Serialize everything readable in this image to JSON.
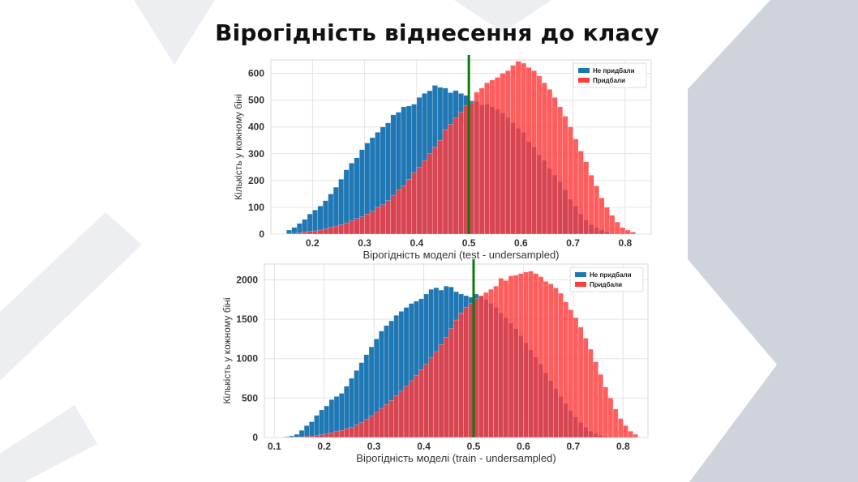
{
  "slide": {
    "title": "Вірогідність віднесення до класу",
    "colors": {
      "background": "#ffffff",
      "decor": "#cfd4dc",
      "decor_light": "#eceef1"
    }
  },
  "chart_data": [
    {
      "type": "bar",
      "subtype": "overlapping-histogram",
      "xlabel": "Вірогідність моделі (test - undersampled)",
      "ylabel": "Кількість у кожному біні",
      "xlim": [
        0.12,
        0.85
      ],
      "ylim": [
        0,
        650
      ],
      "xticks": [
        0.2,
        0.3,
        0.4,
        0.5,
        0.6,
        0.7,
        0.8
      ],
      "yticks": [
        0,
        100,
        200,
        300,
        400,
        500,
        600
      ],
      "grid": true,
      "legend_position": "top-right",
      "threshold_line": {
        "x": 0.5,
        "color": "#0a7a0a"
      },
      "bin_width": 0.01,
      "series": [
        {
          "name": "Не придбали",
          "color": "#1f77b4",
          "x": [
            0.15,
            0.16,
            0.17,
            0.18,
            0.19,
            0.2,
            0.21,
            0.22,
            0.23,
            0.24,
            0.25,
            0.26,
            0.27,
            0.28,
            0.29,
            0.3,
            0.31,
            0.32,
            0.33,
            0.34,
            0.35,
            0.36,
            0.37,
            0.38,
            0.39,
            0.4,
            0.41,
            0.42,
            0.43,
            0.44,
            0.45,
            0.46,
            0.47,
            0.48,
            0.49,
            0.5,
            0.51,
            0.52,
            0.53,
            0.54,
            0.55,
            0.56,
            0.57,
            0.58,
            0.59,
            0.6,
            0.61,
            0.62,
            0.63,
            0.64,
            0.65,
            0.66,
            0.67,
            0.68,
            0.69,
            0.7,
            0.71,
            0.72,
            0.73,
            0.74,
            0.75,
            0.76
          ],
          "values": [
            15,
            25,
            40,
            55,
            75,
            90,
            105,
            125,
            150,
            175,
            205,
            240,
            265,
            285,
            315,
            340,
            360,
            380,
            400,
            415,
            445,
            455,
            475,
            478,
            485,
            510,
            525,
            535,
            555,
            548,
            545,
            528,
            536,
            525,
            518,
            497,
            495,
            482,
            485,
            475,
            465,
            452,
            435,
            415,
            395,
            380,
            345,
            325,
            295,
            275,
            245,
            220,
            195,
            165,
            130,
            105,
            75,
            52,
            35,
            25,
            15,
            8
          ]
        },
        {
          "name": "Придбали",
          "color": "#ff3b3b",
          "x": [
            0.15,
            0.16,
            0.17,
            0.18,
            0.19,
            0.2,
            0.21,
            0.22,
            0.23,
            0.24,
            0.25,
            0.26,
            0.27,
            0.28,
            0.29,
            0.3,
            0.31,
            0.32,
            0.33,
            0.34,
            0.35,
            0.36,
            0.37,
            0.38,
            0.39,
            0.4,
            0.41,
            0.42,
            0.43,
            0.44,
            0.45,
            0.46,
            0.47,
            0.48,
            0.49,
            0.5,
            0.51,
            0.52,
            0.53,
            0.54,
            0.55,
            0.56,
            0.57,
            0.58,
            0.59,
            0.6,
            0.61,
            0.62,
            0.63,
            0.64,
            0.65,
            0.66,
            0.67,
            0.68,
            0.69,
            0.7,
            0.71,
            0.72,
            0.73,
            0.74,
            0.75,
            0.76,
            0.77,
            0.78,
            0.79,
            0.8,
            0.81
          ],
          "values": [
            2,
            3,
            5,
            8,
            10,
            12,
            15,
            20,
            25,
            30,
            35,
            42,
            50,
            58,
            65,
            75,
            85,
            100,
            110,
            125,
            145,
            165,
            180,
            205,
            230,
            250,
            275,
            300,
            325,
            350,
            390,
            410,
            435,
            455,
            480,
            490,
            530,
            545,
            565,
            575,
            585,
            600,
            610,
            630,
            645,
            638,
            622,
            610,
            590,
            565,
            540,
            510,
            475,
            440,
            400,
            355,
            310,
            270,
            220,
            180,
            135,
            100,
            70,
            45,
            25,
            15,
            8
          ]
        }
      ]
    },
    {
      "type": "bar",
      "subtype": "overlapping-histogram",
      "xlabel": "Вірогідність моделі (train - undersampled)",
      "ylabel": "Кількість у кожному біні",
      "xlim": [
        0.08,
        0.85
      ],
      "ylim": [
        0,
        2200
      ],
      "xticks": [
        0.1,
        0.2,
        0.3,
        0.4,
        0.5,
        0.6,
        0.7,
        0.8
      ],
      "yticks": [
        0,
        500,
        1000,
        1500,
        2000
      ],
      "grid": true,
      "legend_position": "top-right",
      "threshold_line": {
        "x": 0.5,
        "color": "#0a7a0a"
      },
      "bin_width": 0.01,
      "series": [
        {
          "name": "Не придбали",
          "color": "#1f77b4",
          "x": [
            0.12,
            0.13,
            0.14,
            0.15,
            0.16,
            0.17,
            0.18,
            0.19,
            0.2,
            0.21,
            0.22,
            0.23,
            0.24,
            0.25,
            0.26,
            0.27,
            0.28,
            0.29,
            0.3,
            0.31,
            0.32,
            0.33,
            0.34,
            0.35,
            0.36,
            0.37,
            0.38,
            0.39,
            0.4,
            0.41,
            0.42,
            0.43,
            0.44,
            0.45,
            0.46,
            0.47,
            0.48,
            0.49,
            0.5,
            0.51,
            0.52,
            0.53,
            0.54,
            0.55,
            0.56,
            0.57,
            0.58,
            0.59,
            0.6,
            0.61,
            0.62,
            0.63,
            0.64,
            0.65,
            0.66,
            0.67,
            0.68,
            0.69,
            0.7,
            0.71,
            0.72,
            0.73,
            0.74,
            0.75,
            0.76
          ],
          "values": [
            10,
            20,
            40,
            90,
            150,
            200,
            280,
            350,
            400,
            480,
            520,
            560,
            650,
            750,
            850,
            950,
            1050,
            1150,
            1250,
            1350,
            1420,
            1480,
            1550,
            1600,
            1650,
            1700,
            1730,
            1760,
            1820,
            1880,
            1900,
            1870,
            1920,
            1910,
            1850,
            1820,
            1800,
            1780,
            1820,
            1790,
            1750,
            1700,
            1650,
            1580,
            1520,
            1450,
            1380,
            1290,
            1200,
            1110,
            1020,
            930,
            820,
            720,
            620,
            520,
            430,
            340,
            260,
            190,
            130,
            80,
            45,
            25,
            10
          ]
        },
        {
          "name": "Придбали",
          "color": "#ff3b3b",
          "x": [
            0.12,
            0.13,
            0.14,
            0.15,
            0.16,
            0.17,
            0.18,
            0.19,
            0.2,
            0.21,
            0.22,
            0.23,
            0.24,
            0.25,
            0.26,
            0.27,
            0.28,
            0.29,
            0.3,
            0.31,
            0.32,
            0.33,
            0.34,
            0.35,
            0.36,
            0.37,
            0.38,
            0.39,
            0.4,
            0.41,
            0.42,
            0.43,
            0.44,
            0.45,
            0.46,
            0.47,
            0.48,
            0.49,
            0.5,
            0.51,
            0.52,
            0.53,
            0.54,
            0.55,
            0.56,
            0.57,
            0.58,
            0.59,
            0.6,
            0.61,
            0.62,
            0.63,
            0.64,
            0.65,
            0.66,
            0.67,
            0.68,
            0.69,
            0.7,
            0.71,
            0.72,
            0.73,
            0.74,
            0.75,
            0.76,
            0.77,
            0.78,
            0.79,
            0.8,
            0.81,
            0.82
          ],
          "values": [
            2,
            4,
            6,
            8,
            12,
            18,
            25,
            35,
            45,
            60,
            75,
            90,
            110,
            130,
            160,
            190,
            230,
            270,
            320,
            370,
            420,
            470,
            530,
            590,
            650,
            720,
            790,
            860,
            930,
            1010,
            1090,
            1180,
            1270,
            1380,
            1490,
            1580,
            1650,
            1700,
            1760,
            1800,
            1840,
            1880,
            1920,
            2020,
            1990,
            2050,
            2060,
            2080,
            2100,
            2110,
            2080,
            2040,
            1980,
            1950,
            1900,
            1830,
            1720,
            1620,
            1520,
            1400,
            1260,
            1120,
            960,
            800,
            640,
            500,
            360,
            240,
            150,
            80,
            40
          ]
        }
      ]
    }
  ]
}
